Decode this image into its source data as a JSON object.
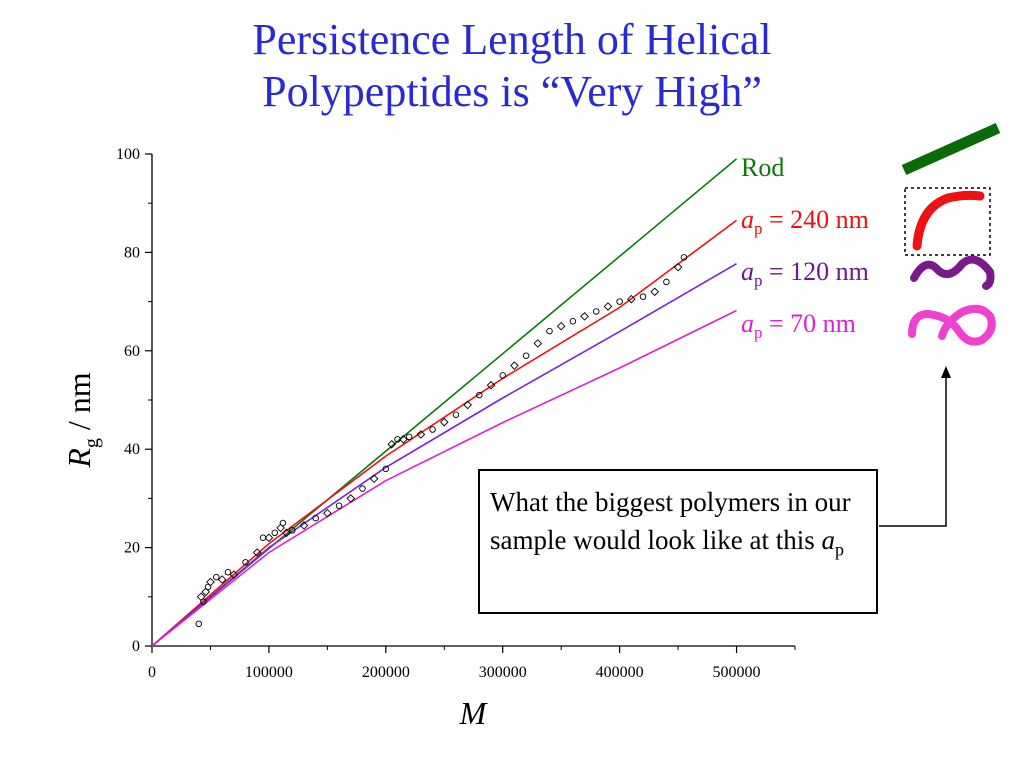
{
  "slide": {
    "title_line1": "Persistence Length of Helical",
    "title_line2": "Polypeptides is “Very High”"
  },
  "note": {
    "text": "What the biggest polymers in our sample would look like at this ",
    "symbol": "a",
    "subscript": "p"
  },
  "chart_data": {
    "type": "scatter",
    "title": "",
    "xlabel": "M",
    "ylabel_main": "R",
    "ylabel_sub": "g",
    "ylabel_unit": " / nm",
    "xlim": [
      0,
      550000
    ],
    "ylim": [
      0,
      100
    ],
    "x_ticks": [
      0,
      100000,
      200000,
      300000,
      400000,
      500000
    ],
    "y_ticks": [
      0,
      20,
      40,
      60,
      80,
      100
    ],
    "colors": {
      "rod": "#0a7a0a",
      "ap240": "#ee1111",
      "ap120": "#7a22dd",
      "ap70": "#e020d0"
    },
    "series": [
      {
        "name": "Rod",
        "kind": "line",
        "color": "#0a7a0a",
        "x": [
          0,
          500000
        ],
        "y": [
          0,
          99
        ]
      },
      {
        "name": "240 nm",
        "symbol": "a",
        "sub": "p",
        "kind": "line",
        "color": "#ee1111",
        "x": [
          0,
          100000,
          200000,
          300000,
          400000,
          500000
        ],
        "y": [
          0,
          20.8,
          38.6,
          54.4,
          68.8,
          86.5
        ]
      },
      {
        "name": "120 nm",
        "symbol": "a",
        "sub": "p",
        "kind": "line",
        "color": "#7a22dd",
        "x": [
          0,
          100000,
          200000,
          300000,
          400000,
          500000
        ],
        "y": [
          0,
          20.0,
          36.3,
          50.4,
          63.9,
          77.7
        ]
      },
      {
        "name": "70 nm",
        "symbol": "a",
        "sub": "p",
        "kind": "line",
        "color": "#e020d0",
        "x": [
          0,
          100000,
          200000,
          300000,
          400000,
          500000
        ],
        "y": [
          0,
          19.0,
          33.6,
          45.4,
          56.5,
          68.2
        ]
      },
      {
        "name": "data",
        "kind": "points",
        "x": [
          40000,
          42000,
          44000,
          46000,
          48000,
          50000,
          55000,
          60000,
          65000,
          70000,
          80000,
          90000,
          95000,
          100000,
          105000,
          110000,
          112000,
          115000,
          120000,
          130000,
          140000,
          150000,
          160000,
          170000,
          180000,
          190000,
          200000,
          205000,
          210000,
          215000,
          220000,
          230000,
          240000,
          250000,
          260000,
          270000,
          280000,
          290000,
          300000,
          310000,
          320000,
          330000,
          340000,
          350000,
          360000,
          370000,
          380000,
          390000,
          400000,
          410000,
          420000,
          430000,
          440000,
          450000,
          455000
        ],
        "y": [
          4.5,
          10,
          9,
          11,
          12,
          13,
          14,
          13.5,
          15,
          14.5,
          17,
          19,
          22,
          22,
          23,
          24,
          25,
          23,
          23.5,
          24.5,
          26,
          27,
          28.5,
          30,
          32,
          34,
          36,
          41,
          42,
          42,
          42.5,
          43,
          44,
          45.5,
          47,
          49,
          51,
          53,
          55,
          57,
          59,
          61.5,
          64,
          65,
          66,
          67,
          68,
          69,
          70,
          70.5,
          71,
          72,
          74,
          77,
          79
        ]
      }
    ],
    "legend": [
      {
        "label": "Rod"
      },
      {
        "label": "240 nm",
        "symbol": "a",
        "sub": "p",
        "eq": " = "
      },
      {
        "label": "120 nm",
        "symbol": "a",
        "sub": "p",
        "eq": " = "
      },
      {
        "label": "70 nm",
        "symbol": "a",
        "sub": "p",
        "eq": " = "
      }
    ],
    "legend_placement": "right of plot area",
    "grid": false
  }
}
